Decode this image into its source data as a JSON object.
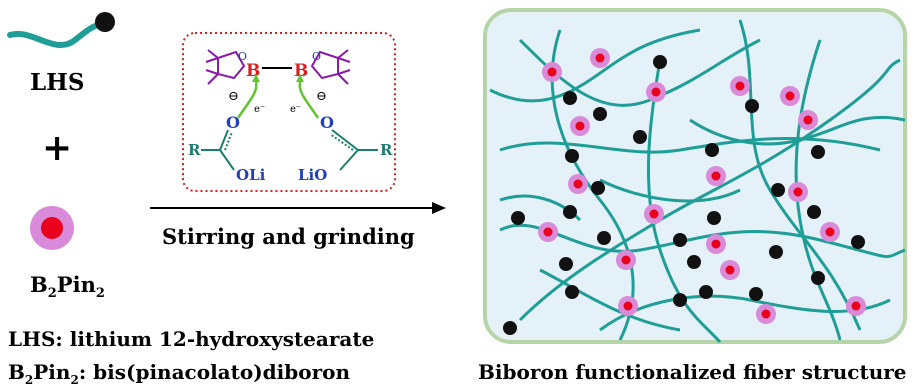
{
  "left_panel": {
    "lhs_label": "LHS",
    "plus": "+",
    "b2pin2_label": {
      "b": "B",
      "sub1": "2",
      "pin": "Pin",
      "sub2": "2"
    }
  },
  "legend": {
    "line1": "LHS: lithium 12-hydroxystearate",
    "line2_b": "B",
    "line2_sub1": "2",
    "line2_pin": "Pin",
    "line2_sub2": "2",
    "line2_rest": ": bis(pinacolato)diboron"
  },
  "reaction": {
    "arrow_label": "Stirring and grinding",
    "atom_b": "B",
    "atom_o": "O",
    "atom_r": "R",
    "oli": "OLi",
    "lio": "LiO",
    "electron": "e⁻",
    "minus": "⊖"
  },
  "right_panel": {
    "caption": "Biboron functionalized fiber structure"
  },
  "colors": {
    "teal": "#1e9e96",
    "black_dot": "#111111",
    "pink_halo": "#d98ad8",
    "red_core": "#e8001c",
    "box_fill": "#e4f1f8",
    "box_border": "#b5d5a8",
    "dotted_box": "#d42020",
    "boron_ring": "#8a1aa8",
    "oxygen": "#1f3fbf",
    "arrow_green": "#5fc530"
  }
}
